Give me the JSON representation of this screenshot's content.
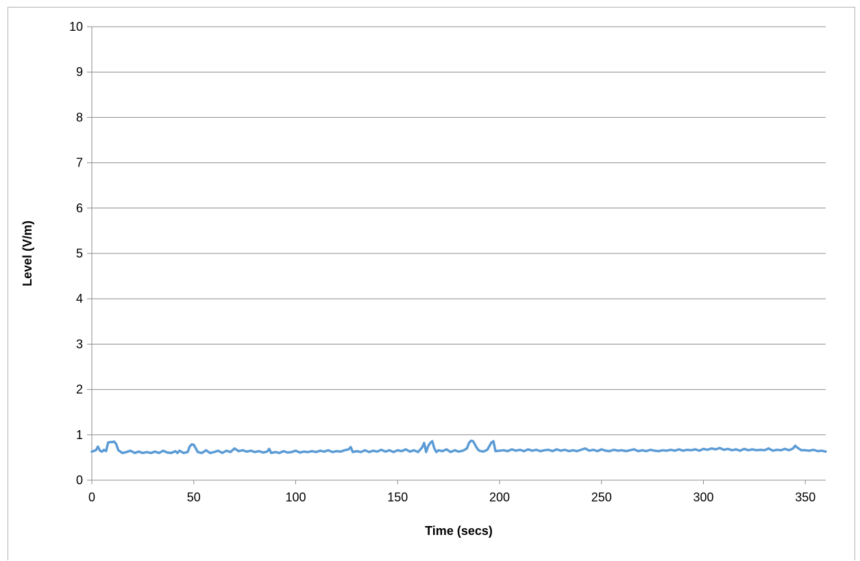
{
  "chart_data": {
    "type": "line",
    "title": "",
    "xlabel": "Time (secs)",
    "ylabel": "Level (V/m)",
    "xlim": [
      0,
      360
    ],
    "ylim": [
      0,
      10
    ],
    "x_ticks": [
      0,
      50,
      100,
      150,
      200,
      250,
      300,
      350
    ],
    "y_ticks": [
      0,
      1,
      2,
      3,
      4,
      5,
      6,
      7,
      8,
      9,
      10
    ],
    "grid": "horizontal",
    "legend": "none",
    "series": [
      {
        "color": "#5b9bd5",
        "x": [
          0,
          2,
          3,
          4,
          5,
          6,
          7,
          8,
          9,
          10,
          11,
          12,
          13,
          15,
          17,
          19,
          21,
          23,
          25,
          27,
          29,
          31,
          33,
          35,
          37,
          39,
          41,
          42,
          43,
          45,
          47,
          48,
          49,
          50,
          51,
          52,
          54,
          56,
          58,
          60,
          62,
          64,
          66,
          68,
          70,
          72,
          74,
          76,
          78,
          80,
          82,
          84,
          86,
          87,
          88,
          90,
          92,
          94,
          96,
          98,
          100,
          102,
          104,
          106,
          108,
          110,
          112,
          114,
          116,
          118,
          120,
          122,
          124,
          126,
          127,
          128,
          130,
          132,
          134,
          136,
          138,
          140,
          142,
          144,
          146,
          148,
          150,
          152,
          154,
          156,
          158,
          160,
          162,
          163,
          164,
          165,
          166,
          167,
          168,
          169,
          170,
          172,
          174,
          176,
          178,
          180,
          182,
          184,
          185,
          186,
          187,
          188,
          189,
          190,
          192,
          194,
          196,
          197,
          198,
          200,
          202,
          204,
          206,
          208,
          210,
          212,
          214,
          216,
          218,
          220,
          222,
          224,
          226,
          228,
          230,
          232,
          234,
          236,
          238,
          240,
          242,
          244,
          246,
          248,
          250,
          252,
          254,
          256,
          258,
          260,
          262,
          264,
          266,
          268,
          270,
          272,
          274,
          276,
          278,
          280,
          282,
          284,
          286,
          288,
          290,
          292,
          294,
          296,
          298,
          300,
          302,
          304,
          306,
          308,
          310,
          312,
          314,
          316,
          318,
          320,
          322,
          324,
          326,
          328,
          330,
          332,
          334,
          336,
          338,
          340,
          342,
          344,
          345,
          346,
          348,
          350,
          352,
          354,
          356,
          358,
          360
        ],
        "y": [
          0.63,
          0.66,
          0.74,
          0.65,
          0.63,
          0.67,
          0.64,
          0.83,
          0.84,
          0.84,
          0.85,
          0.79,
          0.66,
          0.6,
          0.62,
          0.65,
          0.6,
          0.63,
          0.6,
          0.62,
          0.6,
          0.63,
          0.6,
          0.65,
          0.61,
          0.6,
          0.64,
          0.6,
          0.65,
          0.6,
          0.62,
          0.74,
          0.79,
          0.78,
          0.7,
          0.62,
          0.6,
          0.66,
          0.6,
          0.62,
          0.65,
          0.6,
          0.65,
          0.62,
          0.7,
          0.64,
          0.66,
          0.63,
          0.65,
          0.62,
          0.64,
          0.61,
          0.63,
          0.69,
          0.6,
          0.62,
          0.6,
          0.64,
          0.61,
          0.62,
          0.65,
          0.61,
          0.63,
          0.62,
          0.64,
          0.62,
          0.65,
          0.63,
          0.66,
          0.62,
          0.64,
          0.63,
          0.66,
          0.68,
          0.73,
          0.62,
          0.64,
          0.62,
          0.66,
          0.62,
          0.65,
          0.63,
          0.67,
          0.63,
          0.66,
          0.62,
          0.66,
          0.64,
          0.68,
          0.63,
          0.66,
          0.62,
          0.72,
          0.82,
          0.62,
          0.75,
          0.82,
          0.86,
          0.7,
          0.62,
          0.66,
          0.64,
          0.68,
          0.62,
          0.66,
          0.63,
          0.65,
          0.7,
          0.82,
          0.87,
          0.86,
          0.78,
          0.7,
          0.65,
          0.63,
          0.67,
          0.83,
          0.86,
          0.64,
          0.65,
          0.66,
          0.64,
          0.68,
          0.65,
          0.67,
          0.64,
          0.68,
          0.65,
          0.67,
          0.64,
          0.66,
          0.67,
          0.64,
          0.68,
          0.65,
          0.67,
          0.64,
          0.66,
          0.64,
          0.67,
          0.7,
          0.65,
          0.67,
          0.64,
          0.68,
          0.65,
          0.64,
          0.67,
          0.65,
          0.66,
          0.64,
          0.66,
          0.68,
          0.64,
          0.66,
          0.64,
          0.67,
          0.65,
          0.64,
          0.66,
          0.65,
          0.67,
          0.65,
          0.68,
          0.65,
          0.67,
          0.66,
          0.68,
          0.65,
          0.69,
          0.67,
          0.7,
          0.68,
          0.71,
          0.67,
          0.69,
          0.66,
          0.68,
          0.65,
          0.69,
          0.66,
          0.68,
          0.66,
          0.67,
          0.66,
          0.7,
          0.65,
          0.67,
          0.66,
          0.69,
          0.66,
          0.7,
          0.76,
          0.72,
          0.66,
          0.66,
          0.65,
          0.67,
          0.64,
          0.65,
          0.63
        ]
      }
    ]
  }
}
